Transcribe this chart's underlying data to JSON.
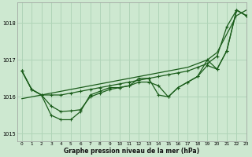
{
  "background_color": "#cde8d0",
  "grid_color": "#b0d4b8",
  "line_color": "#1a5c1a",
  "marker_color": "#1a5c1a",
  "xlabel": "Graphe pression niveau de la mer (hPa)",
  "xlim": [
    -0.5,
    23
  ],
  "ylim": [
    1014.8,
    1018.55
  ],
  "yticks": [
    1015,
    1016,
    1017,
    1018
  ],
  "xticks": [
    0,
    1,
    2,
    3,
    4,
    5,
    6,
    7,
    8,
    9,
    10,
    11,
    12,
    13,
    14,
    15,
    16,
    17,
    18,
    19,
    20,
    21,
    22,
    23
  ],
  "series": [
    [
      1016.7,
      1016.2,
      1016.05,
      1016.05,
      1016.05,
      1016.1,
      1016.15,
      1016.2,
      1016.25,
      1016.3,
      1016.35,
      1016.4,
      1016.45,
      1016.5,
      1016.55,
      1016.6,
      1016.65,
      1016.7,
      1016.8,
      1016.9,
      1017.1,
      1017.9,
      1018.35,
      1018.2
    ],
    [
      1016.7,
      1016.2,
      1016.05,
      1015.5,
      1015.38,
      1015.38,
      1015.6,
      1016.05,
      1016.15,
      1016.25,
      1016.25,
      1016.3,
      1016.5,
      1016.5,
      1016.05,
      1016.0,
      1016.25,
      1016.4,
      1016.55,
      1017.0,
      1016.75,
      1017.25,
      1018.35,
      1018.2
    ],
    [
      1016.7,
      1016.2,
      1016.05,
      1015.75,
      1015.6,
      1015.62,
      1015.65,
      1016.0,
      1016.1,
      1016.2,
      1016.25,
      1016.3,
      1016.4,
      1016.4,
      1016.3,
      1016.0,
      1016.25,
      1016.4,
      1016.55,
      1016.85,
      1016.75,
      1017.25,
      1018.35,
      1018.2
    ]
  ],
  "trend": [
    1015.95,
    1016.0,
    1016.05,
    1016.1,
    1016.15,
    1016.2,
    1016.25,
    1016.3,
    1016.35,
    1016.4,
    1016.45,
    1016.5,
    1016.55,
    1016.6,
    1016.65,
    1016.7,
    1016.75,
    1016.8,
    1016.9,
    1017.0,
    1017.2,
    1017.7,
    1018.2,
    1018.35
  ]
}
